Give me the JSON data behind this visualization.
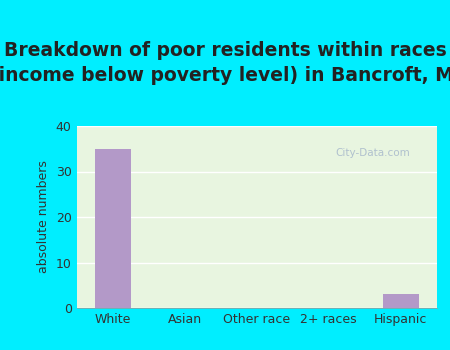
{
  "title": "Breakdown of poor residents within races\n(income below poverty level) in Bancroft, MI",
  "categories": [
    "White",
    "Asian",
    "Other race",
    "2+ races",
    "Hispanic"
  ],
  "values": [
    35,
    0,
    0,
    0,
    3
  ],
  "bar_color": "#b399c8",
  "ylabel": "absolute numbers",
  "ylim": [
    0,
    40
  ],
  "yticks": [
    0,
    10,
    20,
    30,
    40
  ],
  "background_outer": "#00eeff",
  "background_inner_top": "#e8f5e0",
  "background_inner_bottom": "#d0f0e8",
  "title_fontsize": 13.5,
  "title_color": "#222222",
  "axis_label_fontsize": 9,
  "tick_fontsize": 9,
  "watermark_text": "City-Data.com",
  "watermark_color": "#aabbcc"
}
